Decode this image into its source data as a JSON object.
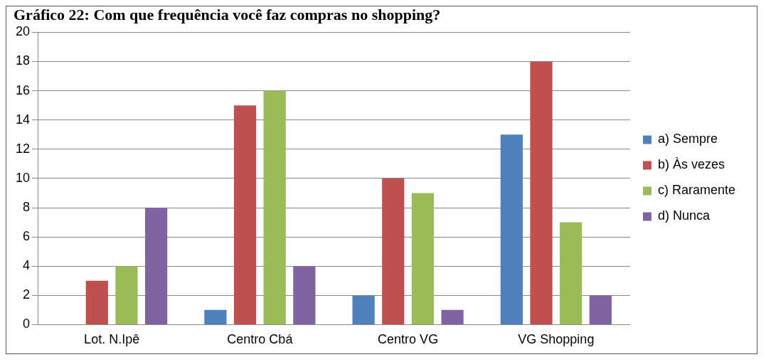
{
  "chart_data": {
    "type": "bar",
    "title": "Gráfico 22: Com que frequência você faz compras no shopping?",
    "categories": [
      "Lot. N.Ipê",
      "Centro Cbá",
      "Centro VG",
      "VG Shopping"
    ],
    "series": [
      {
        "name": "a) Sempre",
        "color": "#4f81bd",
        "values": [
          0,
          1,
          2,
          13
        ]
      },
      {
        "name": "b) Às vezes",
        "color": "#c0504d",
        "values": [
          3,
          15,
          10,
          18
        ]
      },
      {
        "name": "c) Raramente",
        "color": "#9bbb59",
        "values": [
          4,
          16,
          9,
          7
        ]
      },
      {
        "name": "d) Nunca",
        "color": "#8064a2",
        "values": [
          8,
          4,
          1,
          2
        ]
      }
    ],
    "ylim": [
      0,
      20
    ],
    "yticks": [
      0,
      2,
      4,
      6,
      8,
      10,
      12,
      14,
      16,
      18,
      20
    ],
    "grid": "y",
    "legend": "right"
  }
}
